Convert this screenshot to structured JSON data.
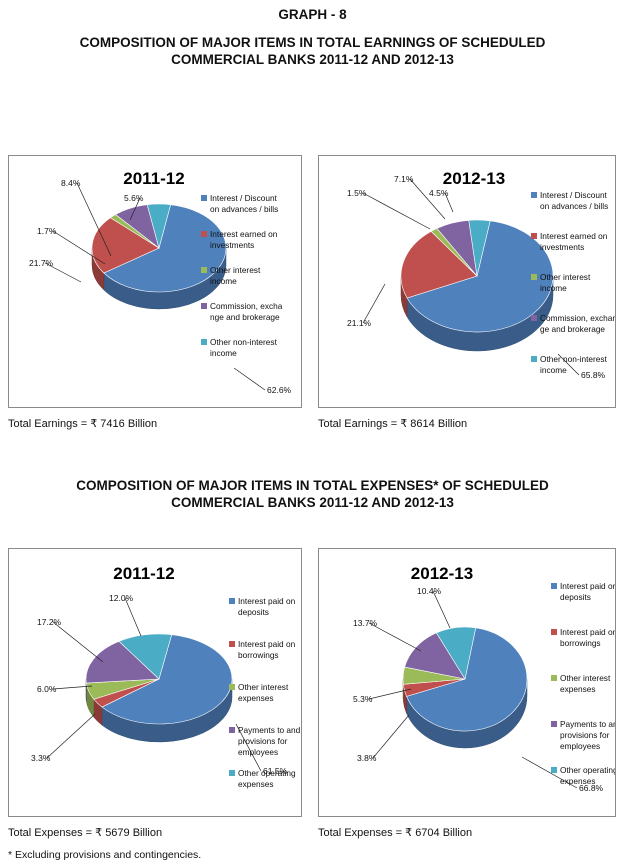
{
  "graph_label": "GRAPH - 8",
  "earnings_title": [
    "COMPOSITION OF MAJOR ITEMS IN TOTAL EARNINGS OF SCHEDULED",
    "COMMERCIAL BANKS 2011-12 AND 2012-13"
  ],
  "expenses_title": [
    "COMPOSITION OF MAJOR ITEMS IN TOTAL EXPENSES* OF SCHEDULED",
    "COMMERCIAL BANKS 2011-12 AND 2012-13"
  ],
  "footnote": "* Excluding provisions and contingencies.",
  "colors": [
    "#4f81bd",
    "#c0504d",
    "#9bbb59",
    "#8064a2",
    "#4bacc6"
  ],
  "chart_data": [
    {
      "type": "pie",
      "title": "2011-12",
      "categories": [
        "Interest / Discount on advances / bills",
        "Interest earned on investments",
        "Other interest income",
        "Commission, exchange and brokerage",
        "Other non-interest income"
      ],
      "legend_lines": [
        [
          "Interest / Discount",
          "on advances / bills"
        ],
        [
          "Interest earned on",
          "investments"
        ],
        [
          "Other interest",
          "income"
        ],
        [
          "Commission, excha",
          "nge and brokerage"
        ],
        [
          "Other non-interest",
          "income"
        ]
      ],
      "values": [
        62.6,
        21.7,
        1.7,
        8.4,
        5.6
      ],
      "labels": [
        "62.6%",
        "21.7%",
        "1.7%",
        "8.4%",
        "5.6%"
      ],
      "total": "Total Earnings = ₹ 7416 Billion"
    },
    {
      "type": "pie",
      "title": "2012-13",
      "categories": [
        "Interest / Discount on advances / bills",
        "Interest earned on investments",
        "Other interest income",
        "Commission, exchange and brokerage",
        "Other non-interest income"
      ],
      "legend_lines": [
        [
          "Interest / Discount",
          "on advances / bills"
        ],
        [
          "Interest earned on",
          "investments"
        ],
        [
          "Other interest",
          "income"
        ],
        [
          "Commission, exchan",
          "ge and brokerage"
        ],
        [
          "Other non-interest",
          "income"
        ]
      ],
      "values": [
        65.8,
        21.1,
        1.5,
        7.1,
        4.5
      ],
      "labels": [
        "65.8%",
        "21.1%",
        "1.5%",
        "7.1%",
        "4.5%"
      ],
      "total": "Total Earnings = ₹ 8614 Billion"
    },
    {
      "type": "pie",
      "title": "2011-12",
      "categories": [
        "Interest paid on deposits",
        "Interest paid on borrowings",
        "Other interest expenses",
        "Payments to and provisions for employees",
        "Other operating expenses"
      ],
      "legend_lines": [
        [
          "Interest paid on",
          "deposits"
        ],
        [
          "Interest paid on",
          "borrowings"
        ],
        [
          "Other interest",
          "expenses"
        ],
        [
          "Payments to and",
          "provisions for",
          "employees"
        ],
        [
          "Other operating",
          "expenses"
        ]
      ],
      "values": [
        61.5,
        3.3,
        6.0,
        17.2,
        12.0
      ],
      "labels": [
        "61.5%",
        "3.3%",
        "6.0%",
        "17.2%",
        "12.0%"
      ],
      "total": "Total Expenses = ₹ 5679 Billion"
    },
    {
      "type": "pie",
      "title": "2012-13",
      "categories": [
        "Interest paid on deposits",
        "Interest paid on borrowings",
        "Other interest expenses",
        "Payments to and provisions for employees",
        "Other operating expenses"
      ],
      "legend_lines": [
        [
          "Interest paid on",
          "deposits"
        ],
        [
          "Interest paid on",
          "borrowings"
        ],
        [
          "Other interest",
          "expenses"
        ],
        [
          "Payments to and",
          "provisions for",
          "employees"
        ],
        [
          "Other operating",
          "expenses"
        ]
      ],
      "values": [
        66.8,
        3.8,
        5.3,
        13.7,
        10.4
      ],
      "labels": [
        "66.8%",
        "3.8%",
        "5.3%",
        "13.7%",
        "10.4%"
      ],
      "total": "Total Expenses = ₹ 6704 Billion"
    }
  ]
}
